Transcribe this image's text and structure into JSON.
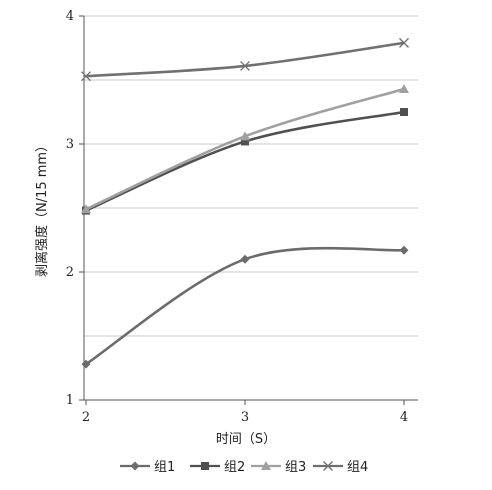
{
  "chart_data": {
    "type": "line",
    "title": "",
    "xlabel": "时间（S）",
    "ylabel": "剥离强度（N/15 mm）",
    "categories": [
      "2",
      "3",
      "4"
    ],
    "x": [
      2,
      3,
      4
    ],
    "ylim": [
      1,
      4
    ],
    "yticks": [
      "1",
      "2",
      "3",
      "4"
    ],
    "grid": "horizontal",
    "legend_position": "bottom",
    "series": [
      {
        "name": "组1",
        "values": [
          1.28,
          2.1,
          2.17
        ],
        "color": "#6b6b6b",
        "marker": "diamond"
      },
      {
        "name": "组2",
        "values": [
          2.48,
          3.02,
          3.25
        ],
        "color": "#505050",
        "marker": "square"
      },
      {
        "name": "组3",
        "values": [
          2.49,
          3.06,
          3.43
        ],
        "color": "#a0a0a0",
        "marker": "triangle"
      },
      {
        "name": "组4",
        "values": [
          3.53,
          3.61,
          3.79
        ],
        "color": "#707070",
        "marker": "x"
      }
    ]
  }
}
